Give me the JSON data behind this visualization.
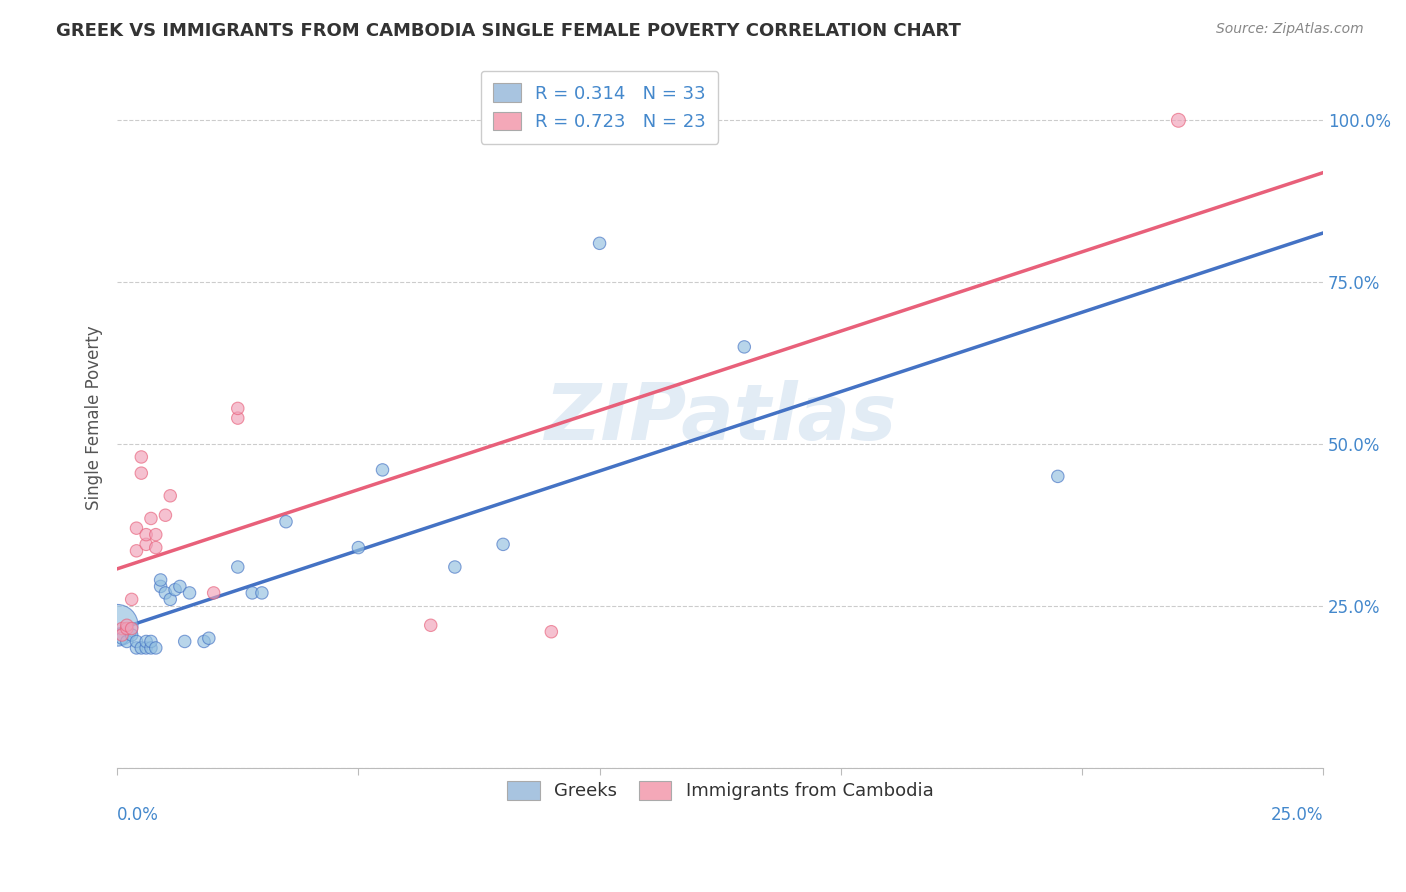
{
  "title": "GREEK VS IMMIGRANTS FROM CAMBODIA SINGLE FEMALE POVERTY CORRELATION CHART",
  "source": "Source: ZipAtlas.com",
  "ylabel": "Single Female Poverty",
  "y_ticks": [
    0.0,
    0.25,
    0.5,
    0.75,
    1.0
  ],
  "y_tick_labels": [
    "",
    "25.0%",
    "50.0%",
    "75.0%",
    "100.0%"
  ],
  "x_range": [
    0.0,
    0.25
  ],
  "y_range": [
    0.0,
    1.08
  ],
  "watermark": "ZIPatlas",
  "legend_entries": [
    {
      "label": "R = 0.314   N = 33",
      "color": "#a8c4e0"
    },
    {
      "label": "R = 0.723   N = 23",
      "color": "#f4a8b8"
    }
  ],
  "legend_bottom": [
    "Greeks",
    "Immigrants from Cambodia"
  ],
  "greek_color": "#92bfe0",
  "cambodia_color": "#f0a0b8",
  "greek_line_color": "#4472c4",
  "cambodia_line_color": "#e8607a",
  "greek_points": [
    [
      0.0,
      0.22
    ],
    [
      0.001,
      0.2
    ],
    [
      0.002,
      0.195
    ],
    [
      0.003,
      0.205
    ],
    [
      0.004,
      0.185
    ],
    [
      0.004,
      0.195
    ],
    [
      0.005,
      0.185
    ],
    [
      0.006,
      0.185
    ],
    [
      0.006,
      0.195
    ],
    [
      0.007,
      0.185
    ],
    [
      0.007,
      0.195
    ],
    [
      0.008,
      0.185
    ],
    [
      0.009,
      0.28
    ],
    [
      0.009,
      0.29
    ],
    [
      0.01,
      0.27
    ],
    [
      0.011,
      0.26
    ],
    [
      0.012,
      0.275
    ],
    [
      0.013,
      0.28
    ],
    [
      0.014,
      0.195
    ],
    [
      0.015,
      0.27
    ],
    [
      0.018,
      0.195
    ],
    [
      0.019,
      0.2
    ],
    [
      0.025,
      0.31
    ],
    [
      0.028,
      0.27
    ],
    [
      0.03,
      0.27
    ],
    [
      0.035,
      0.38
    ],
    [
      0.05,
      0.34
    ],
    [
      0.055,
      0.46
    ],
    [
      0.07,
      0.31
    ],
    [
      0.08,
      0.345
    ],
    [
      0.1,
      0.81
    ],
    [
      0.13,
      0.65
    ],
    [
      0.195,
      0.45
    ]
  ],
  "cambodia_points": [
    [
      0.001,
      0.215
    ],
    [
      0.001,
      0.205
    ],
    [
      0.002,
      0.215
    ],
    [
      0.002,
      0.22
    ],
    [
      0.003,
      0.26
    ],
    [
      0.003,
      0.215
    ],
    [
      0.004,
      0.335
    ],
    [
      0.004,
      0.37
    ],
    [
      0.005,
      0.455
    ],
    [
      0.005,
      0.48
    ],
    [
      0.006,
      0.345
    ],
    [
      0.006,
      0.36
    ],
    [
      0.007,
      0.385
    ],
    [
      0.008,
      0.34
    ],
    [
      0.008,
      0.36
    ],
    [
      0.01,
      0.39
    ],
    [
      0.011,
      0.42
    ],
    [
      0.02,
      0.27
    ],
    [
      0.025,
      0.54
    ],
    [
      0.025,
      0.555
    ],
    [
      0.065,
      0.22
    ],
    [
      0.09,
      0.21
    ],
    [
      0.22,
      1.0
    ]
  ],
  "greek_sizes": [
    900,
    80,
    80,
    80,
    80,
    80,
    80,
    80,
    80,
    80,
    80,
    80,
    80,
    80,
    80,
    80,
    80,
    80,
    80,
    80,
    80,
    80,
    80,
    80,
    80,
    80,
    80,
    80,
    80,
    80,
    80,
    80,
    80
  ],
  "cambodia_sizes": [
    80,
    80,
    80,
    80,
    80,
    80,
    80,
    80,
    80,
    80,
    80,
    80,
    80,
    80,
    80,
    80,
    80,
    80,
    80,
    80,
    80,
    80,
    100
  ]
}
